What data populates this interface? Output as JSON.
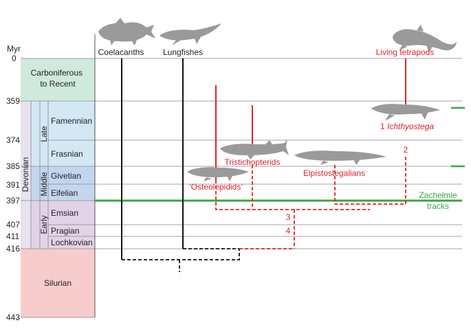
{
  "axis": {
    "unit": "Myr",
    "ticks": [
      "0",
      "359",
      "374",
      "385",
      "391",
      "397",
      "407",
      "411",
      "416",
      "443"
    ]
  },
  "periods": {
    "carboniferous": "Carboniferous\nto Recent",
    "devonian": "Devonian",
    "silurian": "Silurian",
    "late": "Late",
    "middle": "Middle",
    "early": "Early",
    "stages": [
      "Famennian",
      "Frasnian",
      "Givetian",
      "Eifelian",
      "Emsian",
      "Pragian",
      "Lochkovian"
    ]
  },
  "taxa": {
    "coelacanths": "Coelacanths",
    "lungfishes": "Lungfishes",
    "living_tetrapods": "Living tetrapods",
    "ichthyostega": "1 Ichthyostega",
    "tristichopterids": "Tristichopterids",
    "elpistostegalians": "Elpistostegalians",
    "osteolepidids": "‘Osteolepidids’"
  },
  "node_labels": [
    "2",
    "3",
    "4"
  ],
  "tracks": {
    "line1": "Zachełmie",
    "line2": "tracks"
  },
  "colors": {
    "red": "#e0222a",
    "green": "#3aa641",
    "silurian": "#f6c9c9",
    "lower_devonian": "#e2cfe6",
    "middle_devonian": "#c3d4ec",
    "upper_devonian": "#d2e8f5",
    "carboniferous": "#cde9dc"
  }
}
